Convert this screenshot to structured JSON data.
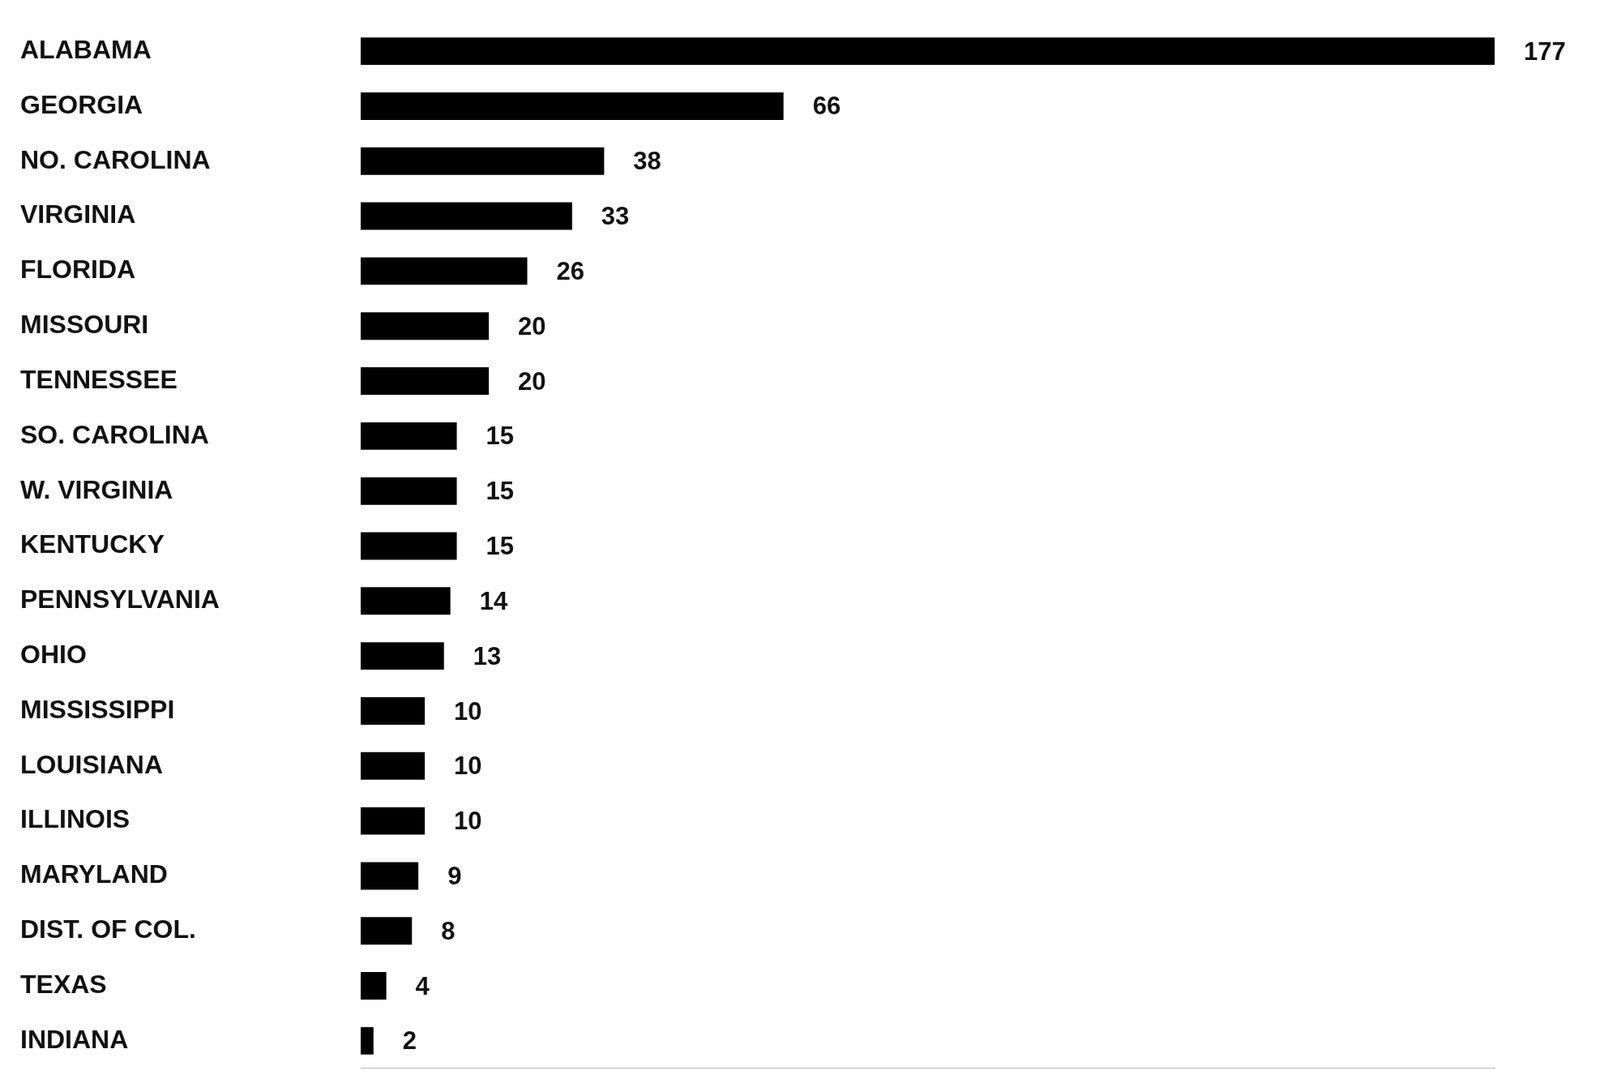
{
  "chart_data": {
    "type": "bar",
    "orientation": "horizontal",
    "categories": [
      "ALABAMA",
      "GEORGIA",
      "NO. CAROLINA",
      "VIRGINIA",
      "FLORIDA",
      "MISSOURI",
      "TENNESSEE",
      "SO. CAROLINA",
      "W. VIRGINIA",
      "KENTUCKY",
      "PENNSYLVANIA",
      "OHIO",
      "MISSISSIPPI",
      "LOUISIANA",
      "ILLINOIS",
      "MARYLAND",
      "DIST. OF COL.",
      "TEXAS",
      "INDIANA"
    ],
    "values": [
      177,
      66,
      38,
      33,
      26,
      20,
      20,
      15,
      15,
      15,
      14,
      13,
      10,
      10,
      10,
      9,
      8,
      4,
      2
    ],
    "color": "#000000",
    "xlim": [
      0,
      177
    ],
    "grid": false,
    "data_labels": true,
    "tick_labels": "y"
  }
}
